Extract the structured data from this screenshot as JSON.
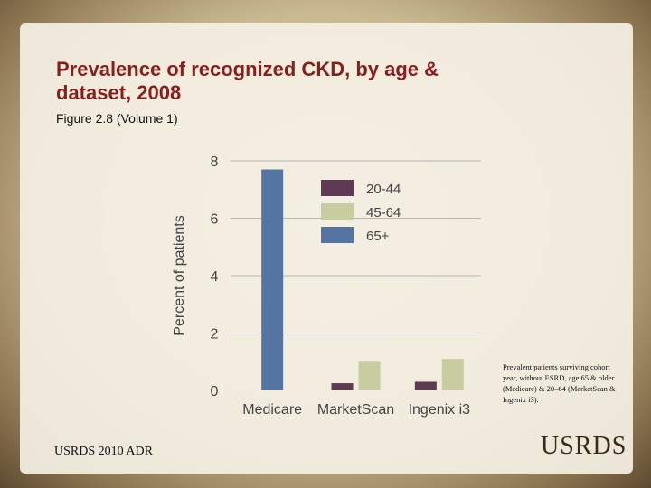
{
  "slide": {
    "title": "Prevalence of recognized CKD, by age & dataset, 2008",
    "subtitle": "Figure 2.8 (Volume 1)",
    "note": "Prevalent patients surviving cohort year, without ESRD, age 65 & older (Medicare) & 20–64 (MarketScan & Ingenix i3).",
    "footer": "USRDS 2010 ADR",
    "logo": "USRDS"
  },
  "chart_data": {
    "type": "bar",
    "title": "",
    "xlabel": "",
    "ylabel": "Percent of patients",
    "ylim": [
      0,
      8
    ],
    "yticks": [
      0,
      2,
      4,
      6,
      8
    ],
    "grid": true,
    "legend_position": "top-right",
    "categories": [
      "Medicare",
      "MarketScan",
      "Ingenix i3"
    ],
    "series": [
      {
        "name": "20-44",
        "color": "#5e3a54",
        "values": [
          null,
          0.25,
          0.3
        ]
      },
      {
        "name": "45-64",
        "color": "#c8cda0",
        "values": [
          null,
          1.0,
          1.1
        ]
      },
      {
        "name": "65+",
        "color": "#5573a3",
        "values": [
          7.7,
          null,
          null
        ]
      }
    ]
  }
}
